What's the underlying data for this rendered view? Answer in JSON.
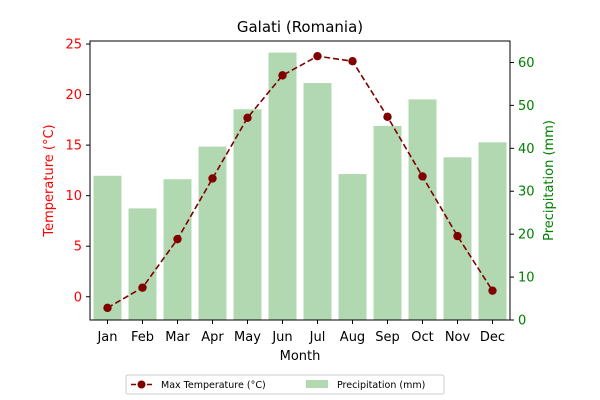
{
  "chart_data": {
    "type": "bar+line",
    "title": "Galati (Romania)",
    "xlabel": "Month",
    "categories": [
      "Jan",
      "Feb",
      "Mar",
      "Apr",
      "May",
      "Jun",
      "Jul",
      "Aug",
      "Sep",
      "Oct",
      "Nov",
      "Dec"
    ],
    "left_axis": {
      "label": "Temperature (°C)",
      "color": "#ff0000",
      "ylim": [
        -2.3,
        25.3
      ],
      "ticks": [
        0,
        5,
        10,
        15,
        20,
        25
      ]
    },
    "right_axis": {
      "label": "Precipitation (mm)",
      "color": "#008000",
      "ylim": [
        0,
        65
      ],
      "ticks": [
        0,
        10,
        20,
        30,
        40,
        50,
        60
      ]
    },
    "series": [
      {
        "name": "Max Temperature (°C)",
        "type": "line",
        "axis": "left",
        "color": "#800000",
        "line_style": "dashed",
        "marker": "circle",
        "values": [
          -1.1,
          0.9,
          5.7,
          11.7,
          17.7,
          21.9,
          23.8,
          23.3,
          17.8,
          11.9,
          6.0,
          0.6
        ]
      },
      {
        "name": "Precipitation (mm)",
        "type": "bar",
        "axis": "right",
        "color": "#b1d8b1",
        "values": [
          33.6,
          26.0,
          32.8,
          40.4,
          49.1,
          62.3,
          55.2,
          34.0,
          45.2,
          51.4,
          37.9,
          41.4
        ]
      }
    ],
    "legend": {
      "position": "bottom-center",
      "entries": [
        "Max Temperature (°C)",
        "Precipitation (mm)"
      ]
    },
    "grid": false
  }
}
